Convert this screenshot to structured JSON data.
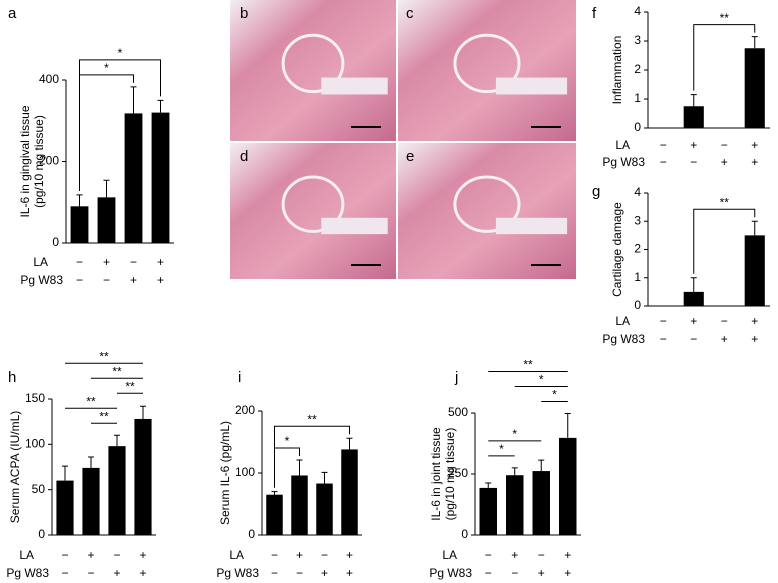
{
  "chart_data": [
    {
      "type": "bar",
      "label": "a",
      "ylabel": [
        "IL-6 in gingival tissue",
        "(pg/10 mg tissue)"
      ],
      "values": [
        90,
        112,
        318,
        320
      ],
      "errors": [
        28,
        42,
        65,
        30
      ],
      "ylim": [
        0,
        400
      ],
      "yticks": [
        0,
        200,
        400
      ],
      "color": "#000000",
      "conditions": [
        {
          "name": "LA",
          "signs": [
            "−",
            "+",
            "−",
            "+"
          ]
        },
        {
          "name": "Pg W83",
          "signs": [
            "−",
            "−",
            "+",
            "+"
          ]
        }
      ],
      "significance": [
        {
          "between": [
            0,
            2
          ],
          "label": "*"
        },
        {
          "between": [
            0,
            3
          ],
          "label": "*"
        }
      ],
      "bracket_style": "legs"
    },
    {
      "type": "image",
      "label": "b"
    },
    {
      "type": "image",
      "label": "c"
    },
    {
      "type": "image",
      "label": "d"
    },
    {
      "type": "image",
      "label": "e"
    },
    {
      "type": "bar",
      "label": "f",
      "ylabel": [
        "Inflammation"
      ],
      "values": [
        0,
        0.75,
        0,
        2.75
      ],
      "errors": [
        0,
        0.4,
        0,
        0.4
      ],
      "ylim": [
        0,
        4
      ],
      "yticks": [
        0,
        1,
        2,
        3,
        4
      ],
      "color": "#000000",
      "conditions": [
        {
          "name": "LA",
          "signs": [
            "−",
            "+",
            "−",
            "+"
          ]
        },
        {
          "name": "Pg W83",
          "signs": [
            "−",
            "−",
            "+",
            "+"
          ]
        }
      ],
      "significance": [
        {
          "between": [
            1,
            3
          ],
          "label": "**"
        }
      ],
      "bracket_style": "legs"
    },
    {
      "type": "bar",
      "label": "g",
      "ylabel": [
        "Cartilage damage"
      ],
      "values": [
        0,
        0.5,
        0,
        2.5
      ],
      "errors": [
        0,
        0.5,
        0,
        0.5
      ],
      "ylim": [
        0,
        4
      ],
      "yticks": [
        0,
        1,
        2,
        3,
        4
      ],
      "color": "#000000",
      "conditions": [
        {
          "name": "LA",
          "signs": [
            "−",
            "+",
            "−",
            "+"
          ]
        },
        {
          "name": "Pg W83",
          "signs": [
            "−",
            "−",
            "+",
            "+"
          ]
        }
      ],
      "significance": [
        {
          "between": [
            1,
            3
          ],
          "label": "**"
        }
      ],
      "bracket_style": "legs"
    },
    {
      "type": "bar",
      "label": "h",
      "ylabel": [
        "Serum ACPA (IU/mL)"
      ],
      "values": [
        60,
        74,
        98,
        128
      ],
      "errors": [
        16,
        12,
        12,
        14
      ],
      "ylim": [
        0,
        150
      ],
      "yticks": [
        0,
        50,
        100,
        150
      ],
      "color": "#000000",
      "conditions": [
        {
          "name": "LA",
          "signs": [
            "−",
            "+",
            "−",
            "+"
          ]
        },
        {
          "name": "Pg W83",
          "signs": [
            "−",
            "−",
            "+",
            "+"
          ]
        }
      ],
      "significance": [
        {
          "between": [
            1,
            2
          ],
          "label": "**"
        },
        {
          "between": [
            0,
            2
          ],
          "label": "**"
        },
        {
          "between": [
            2,
            3
          ],
          "label": "**"
        },
        {
          "between": [
            1,
            3
          ],
          "label": "**"
        },
        {
          "between": [
            0,
            3
          ],
          "label": "**"
        }
      ],
      "bracket_style": "line"
    },
    {
      "type": "bar",
      "label": "i",
      "ylabel": [
        "Serum IL-6 (pg/mL)"
      ],
      "values": [
        65,
        96,
        83,
        138
      ],
      "errors": [
        5,
        25,
        18,
        18
      ],
      "ylim": [
        0,
        200
      ],
      "yticks": [
        0,
        100,
        200
      ],
      "color": "#000000",
      "conditions": [
        {
          "name": "LA",
          "signs": [
            "−",
            "+",
            "−",
            "+"
          ]
        },
        {
          "name": "Pg W83",
          "signs": [
            "−",
            "−",
            "+",
            "+"
          ]
        }
      ],
      "significance": [
        {
          "between": [
            0,
            1
          ],
          "label": "*"
        },
        {
          "between": [
            0,
            3
          ],
          "label": "**"
        }
      ],
      "bracket_style": "legs"
    },
    {
      "type": "bar",
      "label": "j",
      "ylabel": [
        "IL-6 in joint tissue",
        "(pg/10 mg tissue)"
      ],
      "values": [
        193,
        245,
        262,
        398
      ],
      "errors": [
        20,
        30,
        45,
        100
      ],
      "ylim": [
        0,
        500
      ],
      "yticks": [
        0,
        250,
        500
      ],
      "color": "#000000",
      "conditions": [
        {
          "name": "LA",
          "signs": [
            "−",
            "+",
            "−",
            "+"
          ]
        },
        {
          "name": "Pg W83",
          "signs": [
            "−",
            "−",
            "+",
            "+"
          ]
        }
      ],
      "significance": [
        {
          "between": [
            0,
            1
          ],
          "label": "*"
        },
        {
          "between": [
            0,
            2
          ],
          "label": "*"
        },
        {
          "between": [
            2,
            3
          ],
          "label": "*"
        },
        {
          "between": [
            1,
            3
          ],
          "label": "*"
        },
        {
          "between": [
            0,
            3
          ],
          "label": "**"
        }
      ],
      "bracket_style": "line"
    }
  ]
}
